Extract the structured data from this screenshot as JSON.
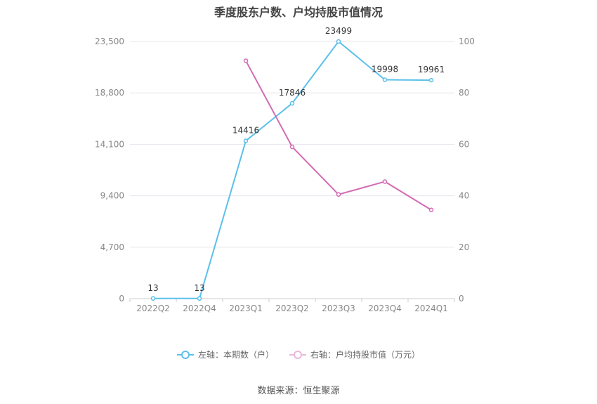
{
  "chart_data": {
    "type": "line",
    "title": "季度股东户数、户均持股市值情况",
    "categories": [
      "2022Q2",
      "2022Q4",
      "2023Q1",
      "2023Q2",
      "2023Q3",
      "2023Q4",
      "2024Q1"
    ],
    "left_axis": {
      "ylim": [
        0,
        23500
      ],
      "ticks": [
        "0",
        "4,700",
        "9,400",
        "14,100",
        "18,800",
        "23,500"
      ]
    },
    "right_axis": {
      "ylim": [
        0,
        100
      ],
      "ticks": [
        "0",
        "20",
        "40",
        "60",
        "80",
        "100"
      ]
    },
    "series": [
      {
        "name": "左轴：本期数（户）",
        "axis": "left",
        "color": "#5bc0eb",
        "values": [
          13,
          13,
          14416,
          17846,
          23499,
          19998,
          19961
        ],
        "labels": [
          "13",
          "13",
          "14416",
          "17846",
          "23499",
          "19998",
          "19961"
        ]
      },
      {
        "name": "右轴：户均持股市值（万元）",
        "axis": "right",
        "color": "#d36bb3",
        "values": [
          null,
          null,
          92.5,
          59,
          40.5,
          45.5,
          34.5
        ]
      }
    ],
    "grid": true,
    "legend_position": "bottom"
  },
  "source": "数据来源：恒生聚源"
}
